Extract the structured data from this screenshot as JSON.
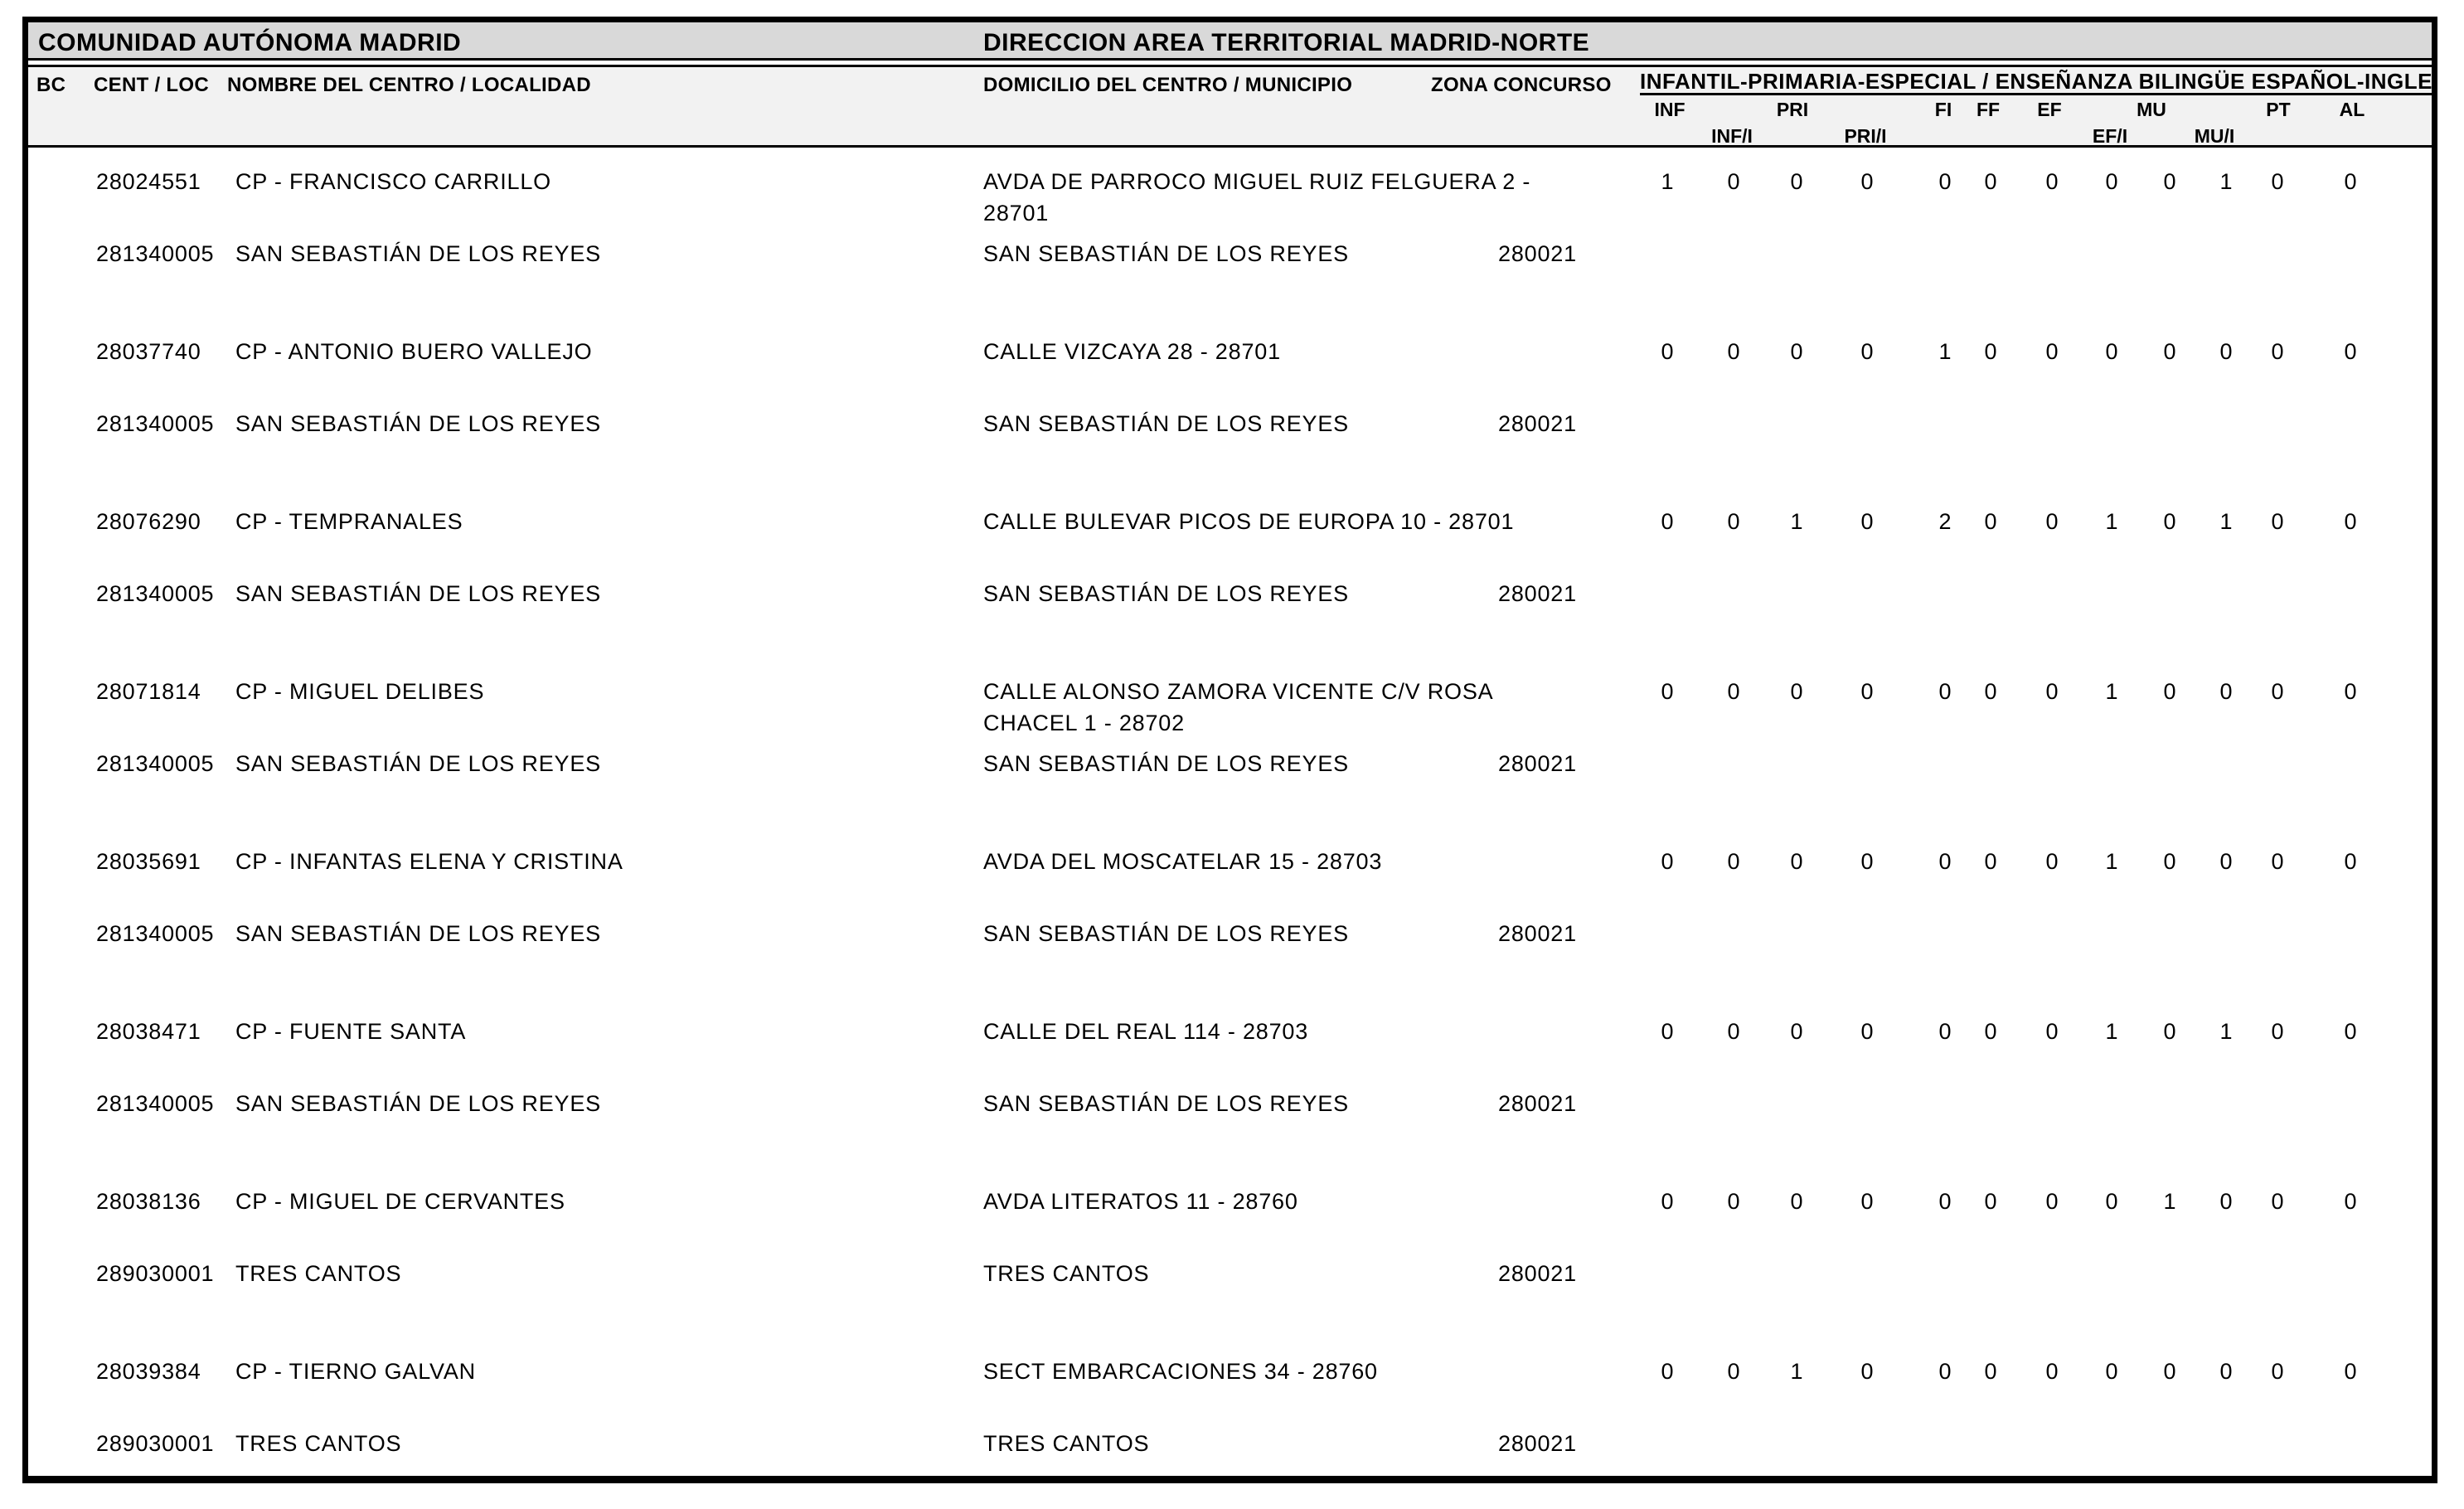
{
  "header": {
    "left_title": "COMUNIDAD AUTÓNOMA MADRID",
    "right_title": "DIRECCION AREA TERRITORIAL MADRID-NORTE"
  },
  "columns": {
    "bc": "BC",
    "cent_loc": "CENT / LOC",
    "nombre": "NOMBRE DEL CENTRO / LOCALIDAD",
    "domicilio": "DOMICILIO DEL CENTRO / MUNICIPIO",
    "zona": "ZONA CONCURSO",
    "group_title": "INFANTIL-PRIMARIA-ESPECIAL / ENSEÑANZA BILINGÜE ESPAÑOL-INGLES",
    "sub": [
      "INF",
      "INF/I",
      "PRI",
      "PRI/I",
      "FI",
      "FF",
      "EF",
      "EF/I",
      "MU",
      "MU/I",
      "PT",
      "AL"
    ]
  },
  "rows": [
    {
      "cent_code": "28024551",
      "name": "CP - FRANCISCO CARRILLO",
      "address_lines": [
        "AVDA DE PARROCO MIGUEL RUIZ FELGUERA 2 -",
        "28701"
      ],
      "loc_code": "281340005",
      "locality": "SAN SEBASTIÁN DE LOS REYES",
      "municipality": "SAN SEBASTIÁN DE LOS REYES",
      "zona": "280021",
      "values": [
        1,
        0,
        0,
        0,
        0,
        0,
        0,
        0,
        0,
        1,
        0,
        0
      ]
    },
    {
      "cent_code": "28037740",
      "name": "CP - ANTONIO BUERO VALLEJO",
      "address_lines": [
        "CALLE VIZCAYA 28 - 28701"
      ],
      "loc_code": "281340005",
      "locality": "SAN SEBASTIÁN DE LOS REYES",
      "municipality": "SAN SEBASTIÁN DE LOS REYES",
      "zona": "280021",
      "values": [
        0,
        0,
        0,
        0,
        1,
        0,
        0,
        0,
        0,
        0,
        0,
        0
      ]
    },
    {
      "cent_code": "28076290",
      "name": "CP - TEMPRANALES",
      "address_lines": [
        "CALLE BULEVAR PICOS DE EUROPA 10 - 28701"
      ],
      "loc_code": "281340005",
      "locality": "SAN SEBASTIÁN DE LOS REYES",
      "municipality": "SAN SEBASTIÁN DE LOS REYES",
      "zona": "280021",
      "values": [
        0,
        0,
        1,
        0,
        2,
        0,
        0,
        1,
        0,
        1,
        0,
        0
      ]
    },
    {
      "cent_code": "28071814",
      "name": "CP - MIGUEL DELIBES",
      "address_lines": [
        "CALLE ALONSO ZAMORA VICENTE C/V ROSA",
        "CHACEL 1 - 28702"
      ],
      "loc_code": "281340005",
      "locality": "SAN SEBASTIÁN DE LOS REYES",
      "municipality": "SAN SEBASTIÁN DE LOS REYES",
      "zona": "280021",
      "values": [
        0,
        0,
        0,
        0,
        0,
        0,
        0,
        1,
        0,
        0,
        0,
        0
      ]
    },
    {
      "cent_code": "28035691",
      "name": "CP - INFANTAS ELENA Y CRISTINA",
      "address_lines": [
        "AVDA DEL MOSCATELAR 15 - 28703"
      ],
      "loc_code": "281340005",
      "locality": "SAN SEBASTIÁN DE LOS REYES",
      "municipality": "SAN SEBASTIÁN DE LOS REYES",
      "zona": "280021",
      "values": [
        0,
        0,
        0,
        0,
        0,
        0,
        0,
        1,
        0,
        0,
        0,
        0
      ]
    },
    {
      "cent_code": "28038471",
      "name": "CP - FUENTE SANTA",
      "address_lines": [
        "CALLE DEL REAL 114 - 28703"
      ],
      "loc_code": "281340005",
      "locality": "SAN SEBASTIÁN DE LOS REYES",
      "municipality": "SAN SEBASTIÁN DE LOS REYES",
      "zona": "280021",
      "values": [
        0,
        0,
        0,
        0,
        0,
        0,
        0,
        1,
        0,
        1,
        0,
        0
      ]
    },
    {
      "cent_code": "28038136",
      "name": "CP - MIGUEL DE CERVANTES",
      "address_lines": [
        "AVDA LITERATOS 11 - 28760"
      ],
      "loc_code": "289030001",
      "locality": "TRES CANTOS",
      "municipality": "TRES CANTOS",
      "zona": "280021",
      "values": [
        0,
        0,
        0,
        0,
        0,
        0,
        0,
        0,
        1,
        0,
        0,
        0
      ]
    },
    {
      "cent_code": "28039384",
      "name": "CP - TIERNO GALVAN",
      "address_lines": [
        "SECT EMBARCACIONES 34 - 28760"
      ],
      "loc_code": "289030001",
      "locality": "TRES CANTOS",
      "municipality": "TRES CANTOS",
      "zona": "280021",
      "values": [
        0,
        0,
        1,
        0,
        0,
        0,
        0,
        0,
        0,
        0,
        0,
        0
      ]
    }
  ],
  "colors": {
    "title_band": "#d9d9d9",
    "header_band": "#f2f2f2",
    "border": "#000000",
    "page": "#ffffff"
  }
}
